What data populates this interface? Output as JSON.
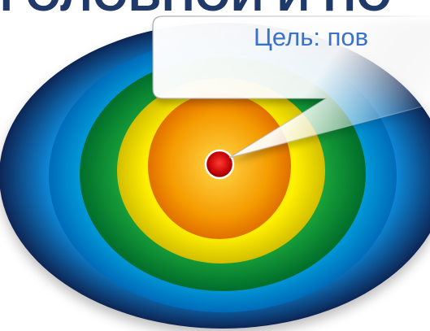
{
  "slide": {
    "title_fragment": "ГОЛОВНОЙ И ПО",
    "callout_text": "Цель: пов"
  },
  "colors": {
    "title": "#1f3a68",
    "callout_text": "#3a73c6",
    "rings": [
      "#123a73",
      "#00b4ef",
      "#009640",
      "#ffe600",
      "#f7a000",
      "#c00000"
    ]
  },
  "icons": {
    "bullseye": "target-icon",
    "center": "bullseye-dot-icon"
  }
}
